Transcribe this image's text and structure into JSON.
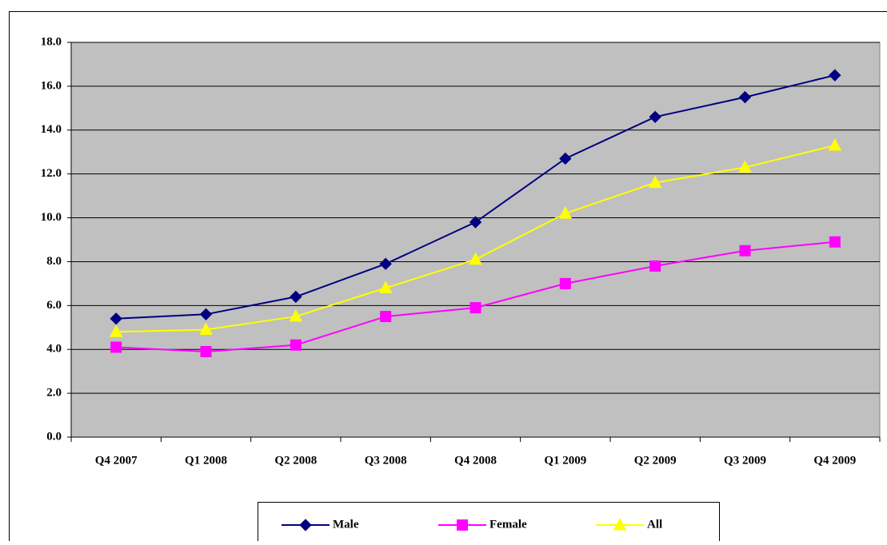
{
  "chart_data": {
    "type": "line",
    "categories": [
      "Q4 2007",
      "Q1 2008",
      "Q2 2008",
      "Q3 2008",
      "Q4 2008",
      "Q1 2009",
      "Q2 2009",
      "Q3 2009",
      "Q4 2009"
    ],
    "series": [
      {
        "name": "Male",
        "color": "#000080",
        "marker": "diamond",
        "values": [
          5.4,
          5.6,
          6.4,
          7.9,
          9.8,
          12.7,
          14.6,
          15.5,
          16.5
        ]
      },
      {
        "name": "Female",
        "color": "#ff00ff",
        "marker": "square",
        "values": [
          4.1,
          3.9,
          4.2,
          5.5,
          5.9,
          7.0,
          7.8,
          8.5,
          8.9
        ]
      },
      {
        "name": "All",
        "color": "#ffff00",
        "marker": "triangle",
        "values": [
          4.8,
          4.9,
          5.5,
          6.8,
          8.1,
          10.2,
          11.6,
          12.3,
          13.3
        ]
      }
    ],
    "ylim": [
      0,
      18
    ],
    "yticks": [
      {
        "value": 0,
        "label": "0.0"
      },
      {
        "value": 2,
        "label": "2.0"
      },
      {
        "value": 4,
        "label": "4.0"
      },
      {
        "value": 6,
        "label": "6.0"
      },
      {
        "value": 8,
        "label": "8.0"
      },
      {
        "value": 10,
        "label": "10.0"
      },
      {
        "value": 12,
        "label": "12.0"
      },
      {
        "value": 14,
        "label": "14.0"
      },
      {
        "value": 16,
        "label": "16.0"
      },
      {
        "value": 18,
        "label": "18.0"
      }
    ],
    "grid": true,
    "legend": "bottom"
  }
}
